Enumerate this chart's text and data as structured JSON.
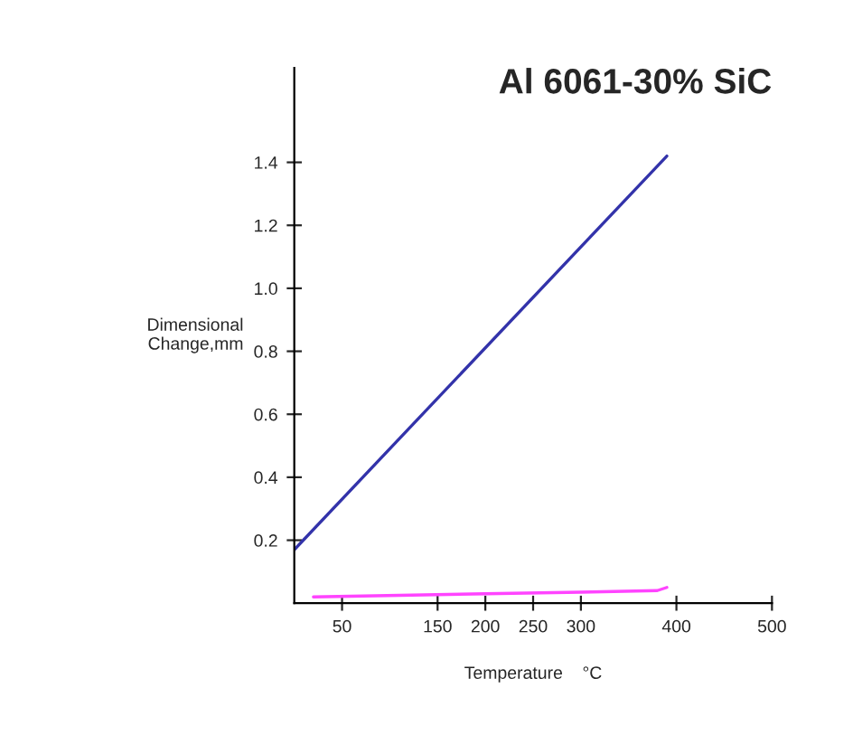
{
  "chart_data": {
    "type": "line",
    "title": "Al 6061-30% SiC",
    "xlabel": "Temperature    °C",
    "ylabel": "Dimensional\nChange,mm",
    "xlim": [
      0,
      500
    ],
    "xticks": [
      50,
      150,
      200,
      250,
      300,
      400,
      500
    ],
    "ylim": [
      0,
      1.7
    ],
    "yticks": [
      0.2,
      0.4,
      0.6,
      0.8,
      {
        "value": 1,
        "label": "1.0"
      },
      1.2,
      1.4
    ],
    "grid": false,
    "legend": false,
    "marker": "none",
    "line_style": "solid",
    "series": [
      {
        "color": "#3333aa",
        "x": [
          0,
          390
        ],
        "values": [
          0.17,
          1.42
        ]
      },
      {
        "color": "#ff44ff",
        "x": [
          20,
          200,
          300,
          380,
          390
        ],
        "values": [
          0.02,
          0.03,
          0.035,
          0.04,
          0.05
        ]
      }
    ]
  }
}
